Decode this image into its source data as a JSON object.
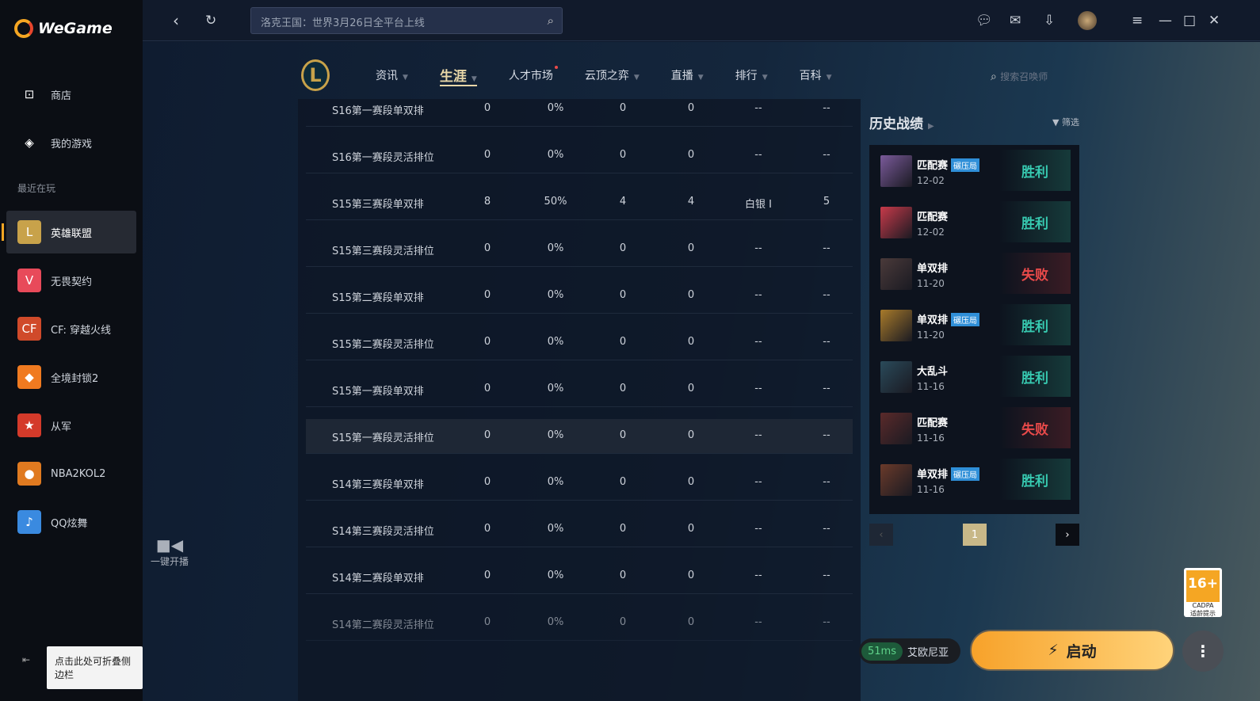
{
  "app": {
    "name": "WeGame"
  },
  "sidebar": {
    "store": "商店",
    "my_games": "我的游戏",
    "recent_label": "最近在玩",
    "games": [
      {
        "label": "英雄联盟",
        "color": "#c8a24a",
        "glyph": "L"
      },
      {
        "label": "无畏契约",
        "color": "#e84a5a",
        "glyph": "V"
      },
      {
        "label": "CF: 穿越火线",
        "color": "#d04a2a",
        "glyph": "CF"
      },
      {
        "label": "全境封锁2",
        "color": "#f07a20",
        "glyph": "◆"
      },
      {
        "label": "从军",
        "color": "#d43a2a",
        "glyph": "★"
      },
      {
        "label": "NBA2KOL2",
        "color": "#e07a20",
        "glyph": "●"
      },
      {
        "label": "QQ炫舞",
        "color": "#3a8ae0",
        "glyph": "♪"
      }
    ],
    "collapse_tooltip": "点击此处可折叠侧边栏"
  },
  "topbar": {
    "search_placeholder": "洛克王国：世界3月26日全平台上线"
  },
  "game_nav": {
    "items": [
      {
        "label": "资讯"
      },
      {
        "label": "生涯",
        "active": true
      },
      {
        "label": "人才市场",
        "dot": true
      },
      {
        "label": "云顶之弈"
      },
      {
        "label": "直播"
      },
      {
        "label": "排行"
      },
      {
        "label": "百科"
      }
    ],
    "search_placeholder": "搜索召唤师"
  },
  "season_table": {
    "rows": [
      [
        "S16第一赛段单双排",
        "0",
        "0%",
        "0",
        "0",
        "--",
        "--"
      ],
      [
        "S16第一赛段灵活排位",
        "0",
        "0%",
        "0",
        "0",
        "--",
        "--"
      ],
      [
        "S15第三赛段单双排",
        "8",
        "50%",
        "4",
        "4",
        "白银 I",
        "5"
      ],
      [
        "S15第三赛段灵活排位",
        "0",
        "0%",
        "0",
        "0",
        "--",
        "--"
      ],
      [
        "S15第二赛段单双排",
        "0",
        "0%",
        "0",
        "0",
        "--",
        "--"
      ],
      [
        "S15第二赛段灵活排位",
        "0",
        "0%",
        "0",
        "0",
        "--",
        "--"
      ],
      [
        "S15第一赛段单双排",
        "0",
        "0%",
        "0",
        "0",
        "--",
        "--"
      ],
      [
        "S15第一赛段灵活排位",
        "0",
        "0%",
        "0",
        "0",
        "--",
        "--"
      ],
      [
        "S14第三赛段单双排",
        "0",
        "0%",
        "0",
        "0",
        "--",
        "--"
      ],
      [
        "S14第三赛段灵活排位",
        "0",
        "0%",
        "0",
        "0",
        "--",
        "--"
      ],
      [
        "S14第二赛段单双排",
        "0",
        "0%",
        "0",
        "0",
        "--",
        "--"
      ],
      [
        "S14第二赛段灵活排位",
        "0",
        "0%",
        "0",
        "0",
        "--",
        "--"
      ]
    ]
  },
  "history": {
    "title": "历史战绩",
    "filter": "筛选",
    "matches": [
      {
        "mode": "匹配赛",
        "tag": "碾压局",
        "date": "12-02",
        "result": "胜利",
        "win": true,
        "color": "#7a5a9a"
      },
      {
        "mode": "匹配赛",
        "tag": "",
        "date": "12-02",
        "result": "胜利",
        "win": true,
        "color": "#c83a4a"
      },
      {
        "mode": "单双排",
        "tag": "",
        "date": "11-20",
        "result": "失败",
        "win": false,
        "color": "#4a3a3a"
      },
      {
        "mode": "单双排",
        "tag": "碾压局",
        "date": "11-20",
        "result": "胜利",
        "win": true,
        "color": "#a87a2a"
      },
      {
        "mode": "大乱斗",
        "tag": "",
        "date": "11-16",
        "result": "胜利",
        "win": true,
        "color": "#2a4a5a"
      },
      {
        "mode": "匹配赛",
        "tag": "",
        "date": "11-16",
        "result": "失败",
        "win": false,
        "color": "#5a2a2a"
      },
      {
        "mode": "单双排",
        "tag": "碾压局",
        "date": "11-16",
        "result": "胜利",
        "win": true,
        "color": "#6a3a2a"
      }
    ],
    "page": "1"
  },
  "live": {
    "label": "一键开播"
  },
  "launch": {
    "ping": "51ms",
    "region": "艾欧尼亚",
    "start": "启动"
  },
  "age_rating": {
    "rating": "16+",
    "org": "CADPA",
    "label": "适龄提示"
  }
}
